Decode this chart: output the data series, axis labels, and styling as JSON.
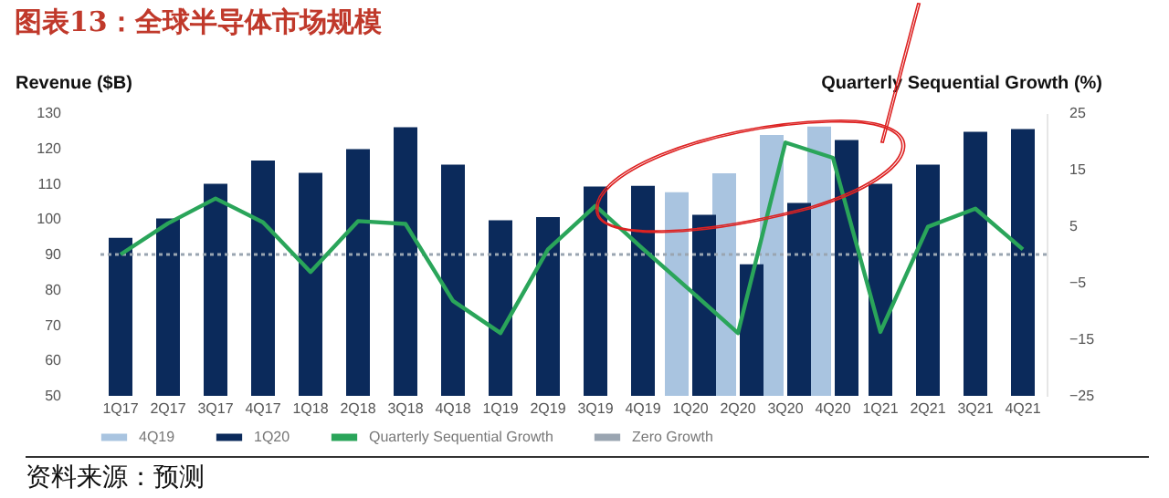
{
  "chart_data": {
    "type": "bar",
    "title": "图表13：全球半导体市场规模",
    "ylabel": "Revenue ($B)",
    "y2label": "Quarterly Sequential Growth (%)",
    "categories": [
      "1Q17",
      "2Q17",
      "3Q17",
      "4Q17",
      "1Q18",
      "2Q18",
      "3Q18",
      "4Q18",
      "1Q19",
      "2Q19",
      "3Q19",
      "4Q19",
      "1Q20",
      "2Q20",
      "3Q20",
      "4Q20",
      "1Q21",
      "2Q21",
      "3Q21",
      "4Q21"
    ],
    "series": [
      {
        "name": "4Q19",
        "color": "#a9c4e0",
        "values": [
          null,
          null,
          null,
          null,
          null,
          null,
          null,
          null,
          null,
          null,
          null,
          null,
          107.6,
          113,
          123.8,
          126.2,
          null,
          null,
          null,
          null
        ]
      },
      {
        "name": "1Q20",
        "color": "#0b2a5b",
        "values": [
          94.7,
          100.2,
          110,
          116.6,
          113.1,
          119.8,
          126,
          115.4,
          99.7,
          100.6,
          109.2,
          109.4,
          101.2,
          87.2,
          104.6,
          122.4,
          110,
          115.4,
          124.7,
          125.5
        ]
      },
      {
        "name": "Quarterly Sequential Growth",
        "type": "line",
        "axis": "y2",
        "color": "#2aa55a",
        "values": [
          0,
          5.5,
          9.9,
          5.7,
          -3.1,
          5.9,
          5.4,
          -8.2,
          -13.9,
          0.9,
          8.6,
          1,
          -6.4,
          -13.9,
          19.8,
          17.1,
          -13.7,
          4.9,
          8.1,
          0.9
        ]
      }
    ],
    "ylim": [
      50,
      130
    ],
    "yticks": [
      50,
      60,
      70,
      80,
      90,
      100,
      110,
      120,
      130
    ],
    "y2lim": [
      -25,
      25
    ],
    "y2ticks": [
      -25,
      -15,
      -5,
      5,
      15,
      25
    ],
    "ref_lines": [
      {
        "axis": "y2",
        "value": 0,
        "label": "Zero Growth",
        "color": "#9aa5b1",
        "line_style": "dotted"
      }
    ],
    "legend": "bottom",
    "annotations": [
      "资料来源：预测"
    ]
  }
}
